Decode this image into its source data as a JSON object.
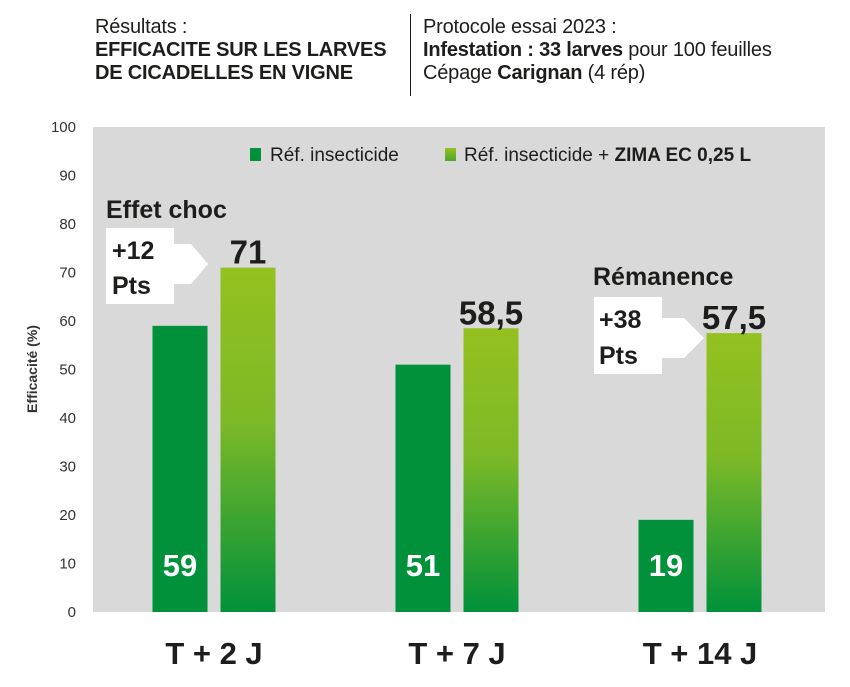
{
  "header": {
    "left_line1": "Résultats :",
    "left_line2": "EFFICACITE SUR LES LARVES",
    "left_line3": "DE CICADELLES EN VIGNE",
    "right_line1": "Protocole essai 2023 :",
    "right_line2_bold": "Infestation : 33 larves",
    "right_line2_rest": " pour 100 feuilles",
    "right_line3_pre": "Cépage ",
    "right_line3_bold": "Carignan",
    "right_line3_post": " (4 rép)"
  },
  "chart_data": {
    "type": "bar",
    "categories": [
      "T + 2 J",
      "T + 7 J",
      "T + 14 J"
    ],
    "series": [
      {
        "name": "Réf. insecticide",
        "values": [
          59,
          51,
          19
        ],
        "color": "#00913a"
      },
      {
        "name": "Réf. insecticide + ZIMA EC 0,25 L",
        "values": [
          71,
          58.5,
          57.5
        ],
        "color_top": "#94c11f",
        "color_bottom": "#00913a"
      }
    ],
    "value_labels": {
      "series1": [
        "59",
        "51",
        "19"
      ],
      "series2": [
        "71",
        "58,5",
        "57,5"
      ]
    },
    "legend": {
      "item1": "Réf. insecticide",
      "item2_pre": "Réf. insecticide + ",
      "item2_bold": "ZIMA EC 0,25 L",
      "placement": "top-right"
    },
    "ylabel": "Efficacité (%)",
    "ylim": [
      0,
      100
    ],
    "yticks": [
      0,
      10,
      20,
      30,
      40,
      50,
      60,
      70,
      80,
      90,
      100
    ],
    "grid": false,
    "plot_background": "#d9d9d9",
    "annotations": [
      {
        "category": "T + 2 J",
        "title": "Effet choc",
        "gain_line1": "+12",
        "gain_line2": "Pts"
      },
      {
        "category": "T + 14 J",
        "title": "Rémanence",
        "gain_line1": "+38",
        "gain_line2": "Pts"
      }
    ]
  }
}
